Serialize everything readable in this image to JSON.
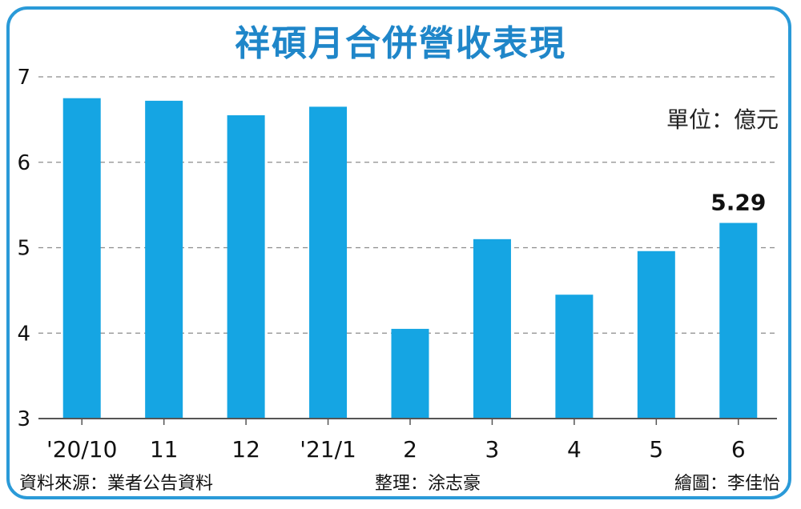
{
  "chart_data": {
    "type": "bar",
    "title": "祥碩月合併營收表現",
    "unit_label": "單位：億元",
    "categories": [
      "'20/10",
      "11",
      "12",
      "'21/1",
      "2",
      "3",
      "4",
      "5",
      "6"
    ],
    "values": [
      6.75,
      6.72,
      6.55,
      6.65,
      4.05,
      5.1,
      4.45,
      4.96,
      5.29
    ],
    "data_labels": [
      {
        "index": 8,
        "text": "5.29"
      }
    ],
    "ylim": [
      3,
      7
    ],
    "yticks": [
      3,
      4,
      5,
      6,
      7
    ],
    "grid": true,
    "bar_color": "#15a5e3"
  },
  "footer": {
    "source": "資料來源：業者公告資料",
    "editor": "整理：涂志豪",
    "illustrator": "繪圖：李佳怡"
  }
}
